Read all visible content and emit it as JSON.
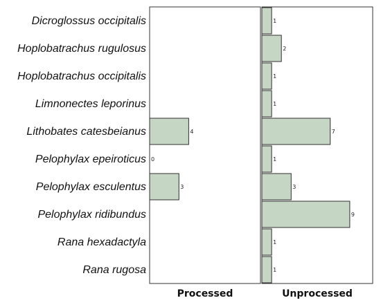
{
  "chart_data": {
    "type": "bar",
    "orientation": "horizontal",
    "categories": [
      "Dicroglossus occipitalis",
      "Hoplobatrachus rugulosus",
      "Hoplobatrachus occipitalis",
      "Limnonectes leporinus",
      "Lithobates catesbeianus",
      "Pelophylax epeiroticus",
      "Pelophylax esculentus",
      "Pelophylax ridibundus",
      "Rana hexadactyla",
      "Rana rugosa"
    ],
    "series": [
      {
        "name": "Processed",
        "values": [
          null,
          null,
          null,
          null,
          4,
          0,
          3,
          null,
          null,
          null
        ],
        "data_labels": [
          "",
          "",
          "",
          "",
          "4",
          "0",
          "3",
          "",
          "",
          ""
        ]
      },
      {
        "name": "Unprocessed",
        "values": [
          1,
          2,
          1,
          1,
          7,
          1,
          3,
          9,
          1,
          1
        ],
        "data_labels": [
          "1",
          "2",
          "1",
          "1",
          "7",
          "1",
          "3",
          "9",
          "1",
          "1"
        ]
      }
    ],
    "xlim": [
      0,
      10
    ],
    "grid": false,
    "colors": {
      "bar_fill": "#c5d6c5",
      "bar_stroke": "#2f2f2f",
      "frame": "#333333",
      "text": "#111111"
    }
  }
}
